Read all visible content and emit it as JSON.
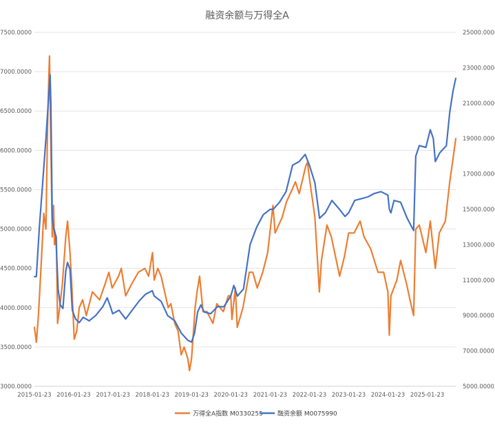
{
  "chart_data": {
    "type": "line",
    "title": "融资余额与万得全A",
    "x_tick_labels": [
      "2015-01-23",
      "2016-01-23",
      "2017-01-23",
      "2018-01-23",
      "2019-01-23",
      "2020-01-23",
      "2021-01-23",
      "2022-01-23",
      "2023-01-23",
      "2024-01-23",
      "2025-01-23"
    ],
    "x_range": [
      "2015-01-23",
      "2025-10-15"
    ],
    "y_left": {
      "range": [
        3000,
        7500
      ],
      "tick_labels": [
        "3000.0000",
        "3500.0000",
        "4000.0000",
        "4500.0000",
        "5000.0000",
        "5500.0000",
        "6000.0000",
        "6500.0000",
        "7000.0000",
        "7500.0000"
      ]
    },
    "y_right": {
      "range": [
        5000,
        25000
      ],
      "tick_labels": [
        "5000.0000",
        "7000.0000",
        "9000.0000",
        "11000.0000",
        "13000.0000",
        "15000.0000",
        "17000.0000",
        "19000.0000",
        "21000.0000",
        "23000.0000",
        "25000.0000"
      ]
    },
    "grid": true,
    "legend_position": "bottom",
    "series": [
      {
        "name": "万得全A指数 M0330255",
        "axis": "left",
        "color": "#ED7D31",
        "points": [
          [
            "2015-01-23",
            3750
          ],
          [
            "2015-02-10",
            3560
          ],
          [
            "2015-03-01",
            3900
          ],
          [
            "2015-03-25",
            4500
          ],
          [
            "2015-04-20",
            5200
          ],
          [
            "2015-05-10",
            5000
          ],
          [
            "2015-05-25",
            6300
          ],
          [
            "2015-06-05",
            6900
          ],
          [
            "2015-06-12",
            7200
          ],
          [
            "2015-06-20",
            6500
          ],
          [
            "2015-06-28",
            5800
          ],
          [
            "2015-07-08",
            4900
          ],
          [
            "2015-07-20",
            5300
          ],
          [
            "2015-07-28",
            4800
          ],
          [
            "2015-08-15",
            4900
          ],
          [
            "2015-08-26",
            3800
          ],
          [
            "2015-09-15",
            4000
          ],
          [
            "2015-10-10",
            4300
          ],
          [
            "2015-11-10",
            4900
          ],
          [
            "2015-11-27",
            5100
          ],
          [
            "2015-12-20",
            4700
          ],
          [
            "2016-01-05",
            4300
          ],
          [
            "2016-01-28",
            3600
          ],
          [
            "2016-02-20",
            3700
          ],
          [
            "2016-03-15",
            4000
          ],
          [
            "2016-04-15",
            4100
          ],
          [
            "2016-05-20",
            3900
          ],
          [
            "2016-07-15",
            4200
          ],
          [
            "2016-09-20",
            4100
          ],
          [
            "2016-11-10",
            4300
          ],
          [
            "2016-12-15",
            4450
          ],
          [
            "2017-01-15",
            4250
          ],
          [
            "2017-03-15",
            4400
          ],
          [
            "2017-04-10",
            4500
          ],
          [
            "2017-05-20",
            4150
          ],
          [
            "2017-07-15",
            4300
          ],
          [
            "2017-09-15",
            4450
          ],
          [
            "2017-11-15",
            4500
          ],
          [
            "2017-12-20",
            4400
          ],
          [
            "2018-01-25",
            4700
          ],
          [
            "2018-02-10",
            4350
          ],
          [
            "2018-03-15",
            4500
          ],
          [
            "2018-04-15",
            4400
          ],
          [
            "2018-06-20",
            4000
          ],
          [
            "2018-07-15",
            4050
          ],
          [
            "2018-08-20",
            3800
          ],
          [
            "2018-09-20",
            3700
          ],
          [
            "2018-10-19",
            3400
          ],
          [
            "2018-11-15",
            3500
          ],
          [
            "2018-12-20",
            3350
          ],
          [
            "2019-01-04",
            3200
          ],
          [
            "2019-01-23",
            3350
          ],
          [
            "2019-02-25",
            4000
          ],
          [
            "2019-03-15",
            4200
          ],
          [
            "2019-04-08",
            4400
          ],
          [
            "2019-05-10",
            3950
          ],
          [
            "2019-06-15",
            3950
          ],
          [
            "2019-08-10",
            3800
          ],
          [
            "2019-09-15",
            4050
          ],
          [
            "2019-11-15",
            3950
          ],
          [
            "2019-12-31",
            4150
          ],
          [
            "2020-01-23",
            4150
          ],
          [
            "2020-02-03",
            3850
          ],
          [
            "2020-03-05",
            4250
          ],
          [
            "2020-03-23",
            3750
          ],
          [
            "2020-05-15",
            4000
          ],
          [
            "2020-07-13",
            4450
          ],
          [
            "2020-08-15",
            4450
          ],
          [
            "2020-09-25",
            4250
          ],
          [
            "2020-11-15",
            4450
          ],
          [
            "2020-12-31",
            4700
          ],
          [
            "2021-02-18",
            5300
          ],
          [
            "2021-03-10",
            4950
          ],
          [
            "2021-05-15",
            5150
          ],
          [
            "2021-06-25",
            5350
          ],
          [
            "2021-08-15",
            5500
          ],
          [
            "2021-09-15",
            5600
          ],
          [
            "2021-10-20",
            5450
          ],
          [
            "2021-12-20",
            5800
          ],
          [
            "2022-01-05",
            5850
          ],
          [
            "2022-01-23",
            5650
          ],
          [
            "2022-03-15",
            5150
          ],
          [
            "2022-04-26",
            4200
          ],
          [
            "2022-05-15",
            4600
          ],
          [
            "2022-07-05",
            5050
          ],
          [
            "2022-08-15",
            4900
          ],
          [
            "2022-10-31",
            4400
          ],
          [
            "2022-12-15",
            4650
          ],
          [
            "2023-01-23",
            4950
          ],
          [
            "2023-03-15",
            4950
          ],
          [
            "2023-05-10",
            5100
          ],
          [
            "2023-06-15",
            4900
          ],
          [
            "2023-08-15",
            4750
          ],
          [
            "2023-10-23",
            4450
          ],
          [
            "2023-12-15",
            4450
          ],
          [
            "2024-01-23",
            4200
          ],
          [
            "2024-02-05",
            3650
          ],
          [
            "2024-02-20",
            4150
          ],
          [
            "2024-04-15",
            4350
          ],
          [
            "2024-05-20",
            4600
          ],
          [
            "2024-07-15",
            4300
          ],
          [
            "2024-08-15",
            4100
          ],
          [
            "2024-09-18",
            3900
          ],
          [
            "2024-10-08",
            5000
          ],
          [
            "2024-11-10",
            5050
          ],
          [
            "2025-01-10",
            4700
          ],
          [
            "2025-02-20",
            5100
          ],
          [
            "2025-04-08",
            4500
          ],
          [
            "2025-05-15",
            4950
          ],
          [
            "2025-07-10",
            5100
          ],
          [
            "2025-08-20",
            5600
          ],
          [
            "2025-09-20",
            5900
          ],
          [
            "2025-10-15",
            6150
          ]
        ]
      },
      {
        "name": "融资余额 M0075990",
        "axis": "right",
        "color": "#4472C4",
        "points": [
          [
            "2015-01-23",
            11200
          ],
          [
            "2015-02-10",
            11200
          ],
          [
            "2015-03-10",
            14000
          ],
          [
            "2015-04-10",
            16500
          ],
          [
            "2015-05-10",
            19000
          ],
          [
            "2015-06-18",
            22600
          ],
          [
            "2015-06-25",
            21000
          ],
          [
            "2015-07-08",
            14500
          ],
          [
            "2015-07-20",
            14000
          ],
          [
            "2015-08-10",
            13500
          ],
          [
            "2015-08-31",
            10500
          ],
          [
            "2015-09-20",
            9600
          ],
          [
            "2015-10-15",
            9400
          ],
          [
            "2015-11-10",
            11500
          ],
          [
            "2015-11-27",
            12000
          ],
          [
            "2015-12-20",
            11600
          ],
          [
            "2016-01-10",
            9300
          ],
          [
            "2016-02-10",
            8800
          ],
          [
            "2016-03-15",
            8600
          ],
          [
            "2016-04-20",
            8900
          ],
          [
            "2016-06-15",
            8700
          ],
          [
            "2016-08-15",
            9000
          ],
          [
            "2016-10-20",
            9500
          ],
          [
            "2016-11-30",
            10000
          ],
          [
            "2016-12-30",
            9500
          ],
          [
            "2017-01-20",
            9100
          ],
          [
            "2017-03-20",
            9300
          ],
          [
            "2017-05-20",
            8800
          ],
          [
            "2017-07-20",
            9300
          ],
          [
            "2017-09-20",
            9800
          ],
          [
            "2017-11-20",
            10200
          ],
          [
            "2018-01-23",
            10400
          ],
          [
            "2018-02-10",
            10100
          ],
          [
            "2018-04-15",
            9800
          ],
          [
            "2018-06-15",
            9000
          ],
          [
            "2018-08-20",
            8700
          ],
          [
            "2018-10-20",
            8000
          ],
          [
            "2018-12-20",
            7600
          ],
          [
            "2019-01-23",
            7500
          ],
          [
            "2019-02-20",
            8000
          ],
          [
            "2019-03-20",
            9200
          ],
          [
            "2019-04-20",
            9600
          ],
          [
            "2019-05-20",
            9200
          ],
          [
            "2019-07-20",
            9100
          ],
          [
            "2019-09-20",
            9500
          ],
          [
            "2019-11-20",
            9500
          ],
          [
            "2020-01-23",
            10100
          ],
          [
            "2020-02-20",
            10700
          ],
          [
            "2020-03-25",
            10100
          ],
          [
            "2020-05-20",
            10500
          ],
          [
            "2020-07-20",
            13000
          ],
          [
            "2020-09-20",
            14000
          ],
          [
            "2020-11-20",
            14700
          ],
          [
            "2021-01-23",
            15000
          ],
          [
            "2021-02-20",
            15000
          ],
          [
            "2021-04-20",
            15400
          ],
          [
            "2021-06-20",
            16000
          ],
          [
            "2021-08-20",
            17500
          ],
          [
            "2021-10-20",
            17700
          ],
          [
            "2021-12-15",
            18100
          ],
          [
            "2022-01-23",
            17500
          ],
          [
            "2022-03-15",
            16500
          ],
          [
            "2022-04-27",
            14500
          ],
          [
            "2022-06-20",
            14800
          ],
          [
            "2022-08-20",
            15500
          ],
          [
            "2022-10-30",
            15000
          ],
          [
            "2022-12-20",
            14600
          ],
          [
            "2023-01-23",
            14800
          ],
          [
            "2023-03-20",
            15500
          ],
          [
            "2023-05-20",
            15600
          ],
          [
            "2023-07-20",
            15700
          ],
          [
            "2023-09-20",
            15900
          ],
          [
            "2023-11-20",
            16000
          ],
          [
            "2024-01-23",
            15800
          ],
          [
            "2024-02-06",
            15000
          ],
          [
            "2024-02-20",
            14800
          ],
          [
            "2024-03-20",
            15500
          ],
          [
            "2024-05-20",
            15400
          ],
          [
            "2024-07-20",
            14500
          ],
          [
            "2024-09-18",
            13800
          ],
          [
            "2024-10-08",
            18000
          ],
          [
            "2024-11-10",
            18600
          ],
          [
            "2025-01-10",
            18500
          ],
          [
            "2025-02-20",
            19500
          ],
          [
            "2025-03-20",
            19000
          ],
          [
            "2025-04-08",
            17700
          ],
          [
            "2025-05-20",
            18200
          ],
          [
            "2025-07-20",
            18600
          ],
          [
            "2025-08-20",
            20500
          ],
          [
            "2025-09-20",
            21700
          ],
          [
            "2025-10-15",
            22400
          ]
        ]
      }
    ]
  }
}
